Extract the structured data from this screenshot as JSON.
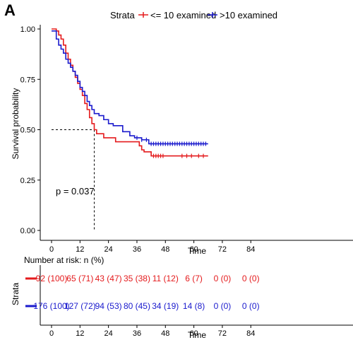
{
  "panel_label": "A",
  "colors": {
    "group1": "#e41a1c",
    "group2": "#1a1acd",
    "text": "#000000",
    "axis": "#000000"
  },
  "chart_data": [
    {
      "type": "line",
      "subtype": "kaplan-meier",
      "title": "",
      "xlabel": "Time",
      "ylabel": "Survival probability",
      "xlim": [
        -5,
        88
      ],
      "ylim": [
        0,
        1.05
      ],
      "x_ticks": [
        0,
        12,
        24,
        36,
        48,
        60,
        72,
        84
      ],
      "y_ticks": [
        0.0,
        0.25,
        0.5,
        0.75,
        1.0
      ],
      "y_tick_labels": [
        "0.00",
        "0.25",
        "0.50",
        "0.75",
        "1.00"
      ],
      "grid": false,
      "legend": {
        "title": "Strata",
        "position": "top",
        "entries": [
          "<= 10 examined",
          ">10 examined"
        ]
      },
      "annotation": "p = 0.037",
      "median_survival": {
        "y": 0.5,
        "x": 18
      },
      "series": [
        {
          "name": "<= 10 examined",
          "color": "#e41a1c",
          "steps": [
            [
              0,
              1.0
            ],
            [
              2,
              0.99
            ],
            [
              3,
              0.97
            ],
            [
              4,
              0.95
            ],
            [
              5,
              0.92
            ],
            [
              6,
              0.88
            ],
            [
              7,
              0.85
            ],
            [
              8,
              0.82
            ],
            [
              9,
              0.79
            ],
            [
              10,
              0.76
            ],
            [
              11,
              0.73
            ],
            [
              12,
              0.7
            ],
            [
              13,
              0.67
            ],
            [
              14,
              0.63
            ],
            [
              15,
              0.6
            ],
            [
              16,
              0.56
            ],
            [
              17,
              0.53
            ],
            [
              18,
              0.5
            ],
            [
              19,
              0.48
            ],
            [
              22,
              0.46
            ],
            [
              27,
              0.44
            ],
            [
              37,
              0.42
            ],
            [
              38,
              0.4
            ],
            [
              39,
              0.39
            ],
            [
              42,
              0.37
            ],
            [
              66,
              0.37
            ]
          ],
          "censor_x": [
            43,
            44,
            45,
            46,
            47,
            55,
            57,
            59,
            62,
            64
          ]
        },
        {
          "name": ">10 examined",
          "color": "#1a1acd",
          "steps": [
            [
              0,
              0.99
            ],
            [
              2,
              0.95
            ],
            [
              3,
              0.92
            ],
            [
              4,
              0.9
            ],
            [
              5,
              0.88
            ],
            [
              6,
              0.85
            ],
            [
              7,
              0.83
            ],
            [
              8,
              0.81
            ],
            [
              9,
              0.79
            ],
            [
              10,
              0.77
            ],
            [
              11,
              0.74
            ],
            [
              12,
              0.71
            ],
            [
              13,
              0.69
            ],
            [
              14,
              0.67
            ],
            [
              15,
              0.64
            ],
            [
              16,
              0.62
            ],
            [
              17,
              0.6
            ],
            [
              18,
              0.58
            ],
            [
              20,
              0.57
            ],
            [
              22,
              0.55
            ],
            [
              24,
              0.53
            ],
            [
              26,
              0.52
            ],
            [
              30,
              0.49
            ],
            [
              33,
              0.47
            ],
            [
              35,
              0.46
            ],
            [
              38,
              0.45
            ],
            [
              41,
              0.43
            ],
            [
              66,
              0.43
            ]
          ],
          "censor_x": [
            36,
            38,
            40,
            42,
            43,
            44,
            45,
            46,
            47,
            48,
            49,
            50,
            51,
            52,
            53,
            54,
            55,
            56,
            57,
            58,
            59,
            60,
            61,
            62,
            63,
            64,
            65
          ]
        }
      ]
    },
    {
      "type": "table",
      "title": "Number at risk: n (%)",
      "xlabel": "Time",
      "ylabel": "Strata",
      "x_ticks": [
        0,
        12,
        24,
        36,
        48,
        60,
        72,
        84
      ],
      "rows": [
        {
          "name": "<= 10 examined",
          "color": "#e41a1c",
          "values": [
            "92 (100)",
            "65 (71)",
            "43 (47)",
            "35 (38)",
            "11 (12)",
            "6 (7)",
            "0 (0)",
            "0 (0)"
          ]
        },
        {
          "name": ">10 examined",
          "color": "#1a1acd",
          "values": [
            "176 (100)",
            "127 (72)",
            "94 (53)",
            "80 (45)",
            "34 (19)",
            "14 (8)",
            "0 (0)",
            "0 (0)"
          ]
        }
      ]
    }
  ]
}
